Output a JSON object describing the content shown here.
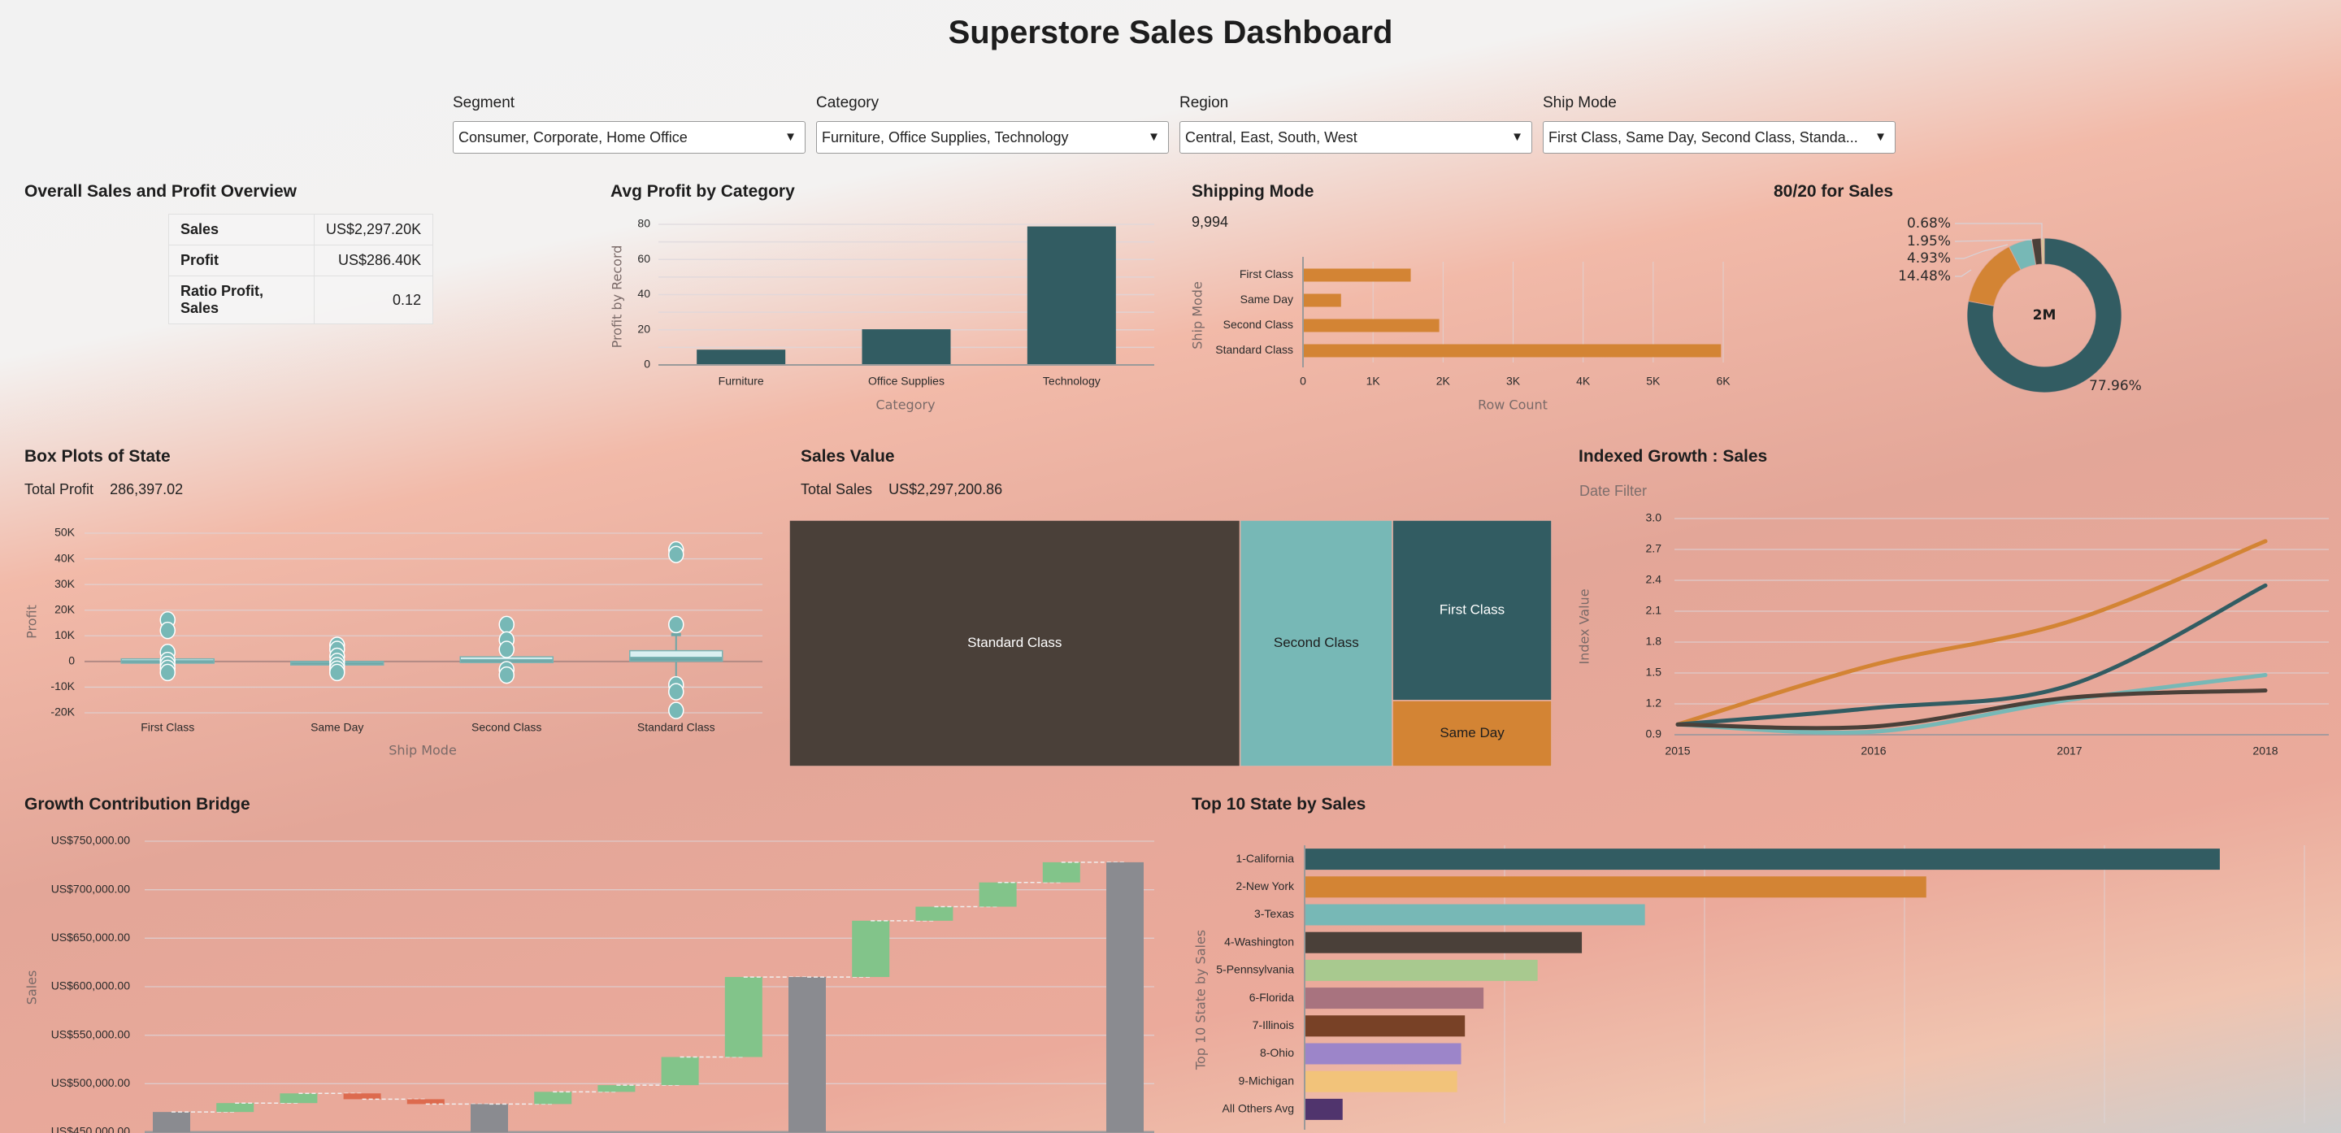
{
  "header": {
    "title": "Superstore Sales Dashboard"
  },
  "filters": [
    {
      "label": "Segment",
      "value": "Consumer, Corporate, Home Office"
    },
    {
      "label": "Category",
      "value": "Furniture, Office Supplies, Technology"
    },
    {
      "label": "Region",
      "value": "Central, East, South, West"
    },
    {
      "label": "Ship Mode",
      "value": "First Class, Same Day, Second Class, Standa..."
    }
  ],
  "overview": {
    "title": "Overall Sales and Profit Overview",
    "rows": [
      {
        "label": "Sales",
        "value": "US$2,297.20K"
      },
      {
        "label": "Profit",
        "value": "US$286.40K"
      },
      {
        "label": "Ratio Profit, Sales",
        "value": "0.12"
      }
    ]
  },
  "box_plots": {
    "title": "Box Plots of State",
    "kpi_label": "Total Profit",
    "kpi_value": "286,397.02"
  },
  "sales_value": {
    "title": "Sales Value",
    "kpi_label": "Total Sales",
    "kpi_value": "US$2,297,200.86"
  },
  "shipping_mode": {
    "title": "Shipping Mode",
    "kpi_value": "9,994"
  },
  "indexed_growth": {
    "title": "Indexed Growth : Sales",
    "subtitle": "Date Filter"
  },
  "colors": {
    "dark_teal": "#325c62",
    "orange": "#d38434",
    "light_teal": "#77b8b6",
    "dark_brown": "#4a4039",
    "tan": "#d8c59a",
    "green": "#82c48a",
    "red": "#dd6a4e",
    "gray": "#8a8b90"
  },
  "chart_data": [
    {
      "id": "avg_profit",
      "type": "bar",
      "title": "Avg Profit by Category",
      "categories": [
        "Furniture",
        "Office Supplies",
        "Technology"
      ],
      "values": [
        8.7,
        20.3,
        78.8
      ],
      "xlabel": "Category",
      "ylabel": "Profit by Record",
      "ylim": [
        0,
        80
      ],
      "yticks": [
        "0",
        "20",
        "40",
        "60",
        "80"
      ],
      "grid": true
    },
    {
      "id": "shipping_mode",
      "type": "bar",
      "orientation": "horizontal",
      "title": "Shipping Mode",
      "categories": [
        "First Class",
        "Same Day",
        "Second Class",
        "Standard Class"
      ],
      "values": [
        1538,
        543,
        1945,
        5968
      ],
      "xlabel": "Row Count",
      "ylabel": "Ship Mode",
      "xlim": [
        0,
        6000
      ],
      "xticks": [
        "0",
        "1K",
        "2K",
        "3K",
        "4K",
        "5K",
        "6K"
      ],
      "grid": true
    },
    {
      "id": "pareto_donut",
      "type": "pie",
      "title": "80/20 for Sales",
      "center_label": "2M",
      "slices": [
        {
          "label": "77.96%",
          "value": 77.96,
          "color": "#325c62"
        },
        {
          "label": "14.48%",
          "value": 14.48,
          "color": "#d38434"
        },
        {
          "label": "4.93%",
          "value": 4.93,
          "color": "#77b8b6"
        },
        {
          "label": "1.95%",
          "value": 1.95,
          "color": "#4a4039"
        },
        {
          "label": "0.68%",
          "value": 0.68,
          "color": "#d8c59a"
        }
      ]
    },
    {
      "id": "box_plots",
      "type": "scatter",
      "subtype": "boxplot",
      "title": "Box Plots of State",
      "xlabel": "Ship Mode",
      "ylabel": "Profit",
      "ylim": [
        -20000,
        50000
      ],
      "yticks": [
        "-20K",
        "-10K",
        "0",
        "10K",
        "20K",
        "30K",
        "40K",
        "50K"
      ],
      "categories": [
        "First Class",
        "Same Day",
        "Second Class",
        "Standard Class"
      ],
      "boxes": [
        {
          "q1": -400,
          "median": 300,
          "q3": 1000,
          "whisker_low": -400,
          "whisker_high": 1000,
          "points": [
            16200,
            12100,
            3500,
            400,
            -1200,
            -2700,
            -4300
          ]
        },
        {
          "q1": -1000,
          "median": -400,
          "q3": 0,
          "whisker_low": -1000,
          "whisker_high": 0,
          "points": [
            6300,
            4700,
            2000,
            0,
            -1600,
            -3000,
            -4300
          ]
        },
        {
          "q1": -400,
          "median": 700,
          "q3": 1800,
          "whisker_low": -400,
          "whisker_high": 1800,
          "points": [
            14400,
            8400,
            4700,
            -3200,
            -5300
          ]
        },
        {
          "q1": 100,
          "median": 1600,
          "q3": 4200,
          "whisker_low": -6300,
          "whisker_high": 10500,
          "points": [
            43500,
            41700,
            14400,
            -9100,
            -11800,
            -19100
          ]
        }
      ]
    },
    {
      "id": "sales_treemap",
      "type": "heatmap",
      "subtype": "treemap",
      "title": "Sales Value",
      "items": [
        {
          "label": "Standard Class",
          "value": 1358216,
          "color": "#4a4039",
          "text_color": "#ffffff"
        },
        {
          "label": "Second Class",
          "value": 459194,
          "color": "#77b8b6",
          "text_color": "#1d1d1d"
        },
        {
          "label": "First Class",
          "value": 351428,
          "color": "#325c62",
          "text_color": "#ffffff"
        },
        {
          "label": "Same Day",
          "value": 128363,
          "color": "#d38434",
          "text_color": "#1d1d1d"
        }
      ]
    },
    {
      "id": "indexed_growth",
      "type": "line",
      "title": "Indexed Growth : Sales",
      "ylabel": "Index Value",
      "x": [
        "2015",
        "2016",
        "2017",
        "2018"
      ],
      "ylim": [
        0.9,
        3.0
      ],
      "yticks": [
        "0.9",
        "1.2",
        "1.5",
        "1.8",
        "2.1",
        "2.4",
        "2.7",
        "3.0"
      ],
      "series": [
        {
          "name": "orange",
          "color": "#d38434",
          "values": [
            1.0,
            1.58,
            2.0,
            2.78
          ]
        },
        {
          "name": "dark-teal",
          "color": "#325c62",
          "values": [
            1.0,
            1.16,
            1.38,
            2.35
          ]
        },
        {
          "name": "light-teal",
          "color": "#77b8b6",
          "values": [
            1.0,
            0.93,
            1.24,
            1.48
          ]
        },
        {
          "name": "dark-brown",
          "color": "#4a4039",
          "values": [
            1.0,
            0.98,
            1.26,
            1.33
          ]
        }
      ]
    },
    {
      "id": "growth_bridge",
      "type": "bar",
      "subtype": "waterfall",
      "title": "Growth Contribution Bridge",
      "ylabel": "Sales",
      "ylim": [
        450000,
        750000
      ],
      "yticks": [
        "US$450,000.00",
        "US$500,000.00",
        "US$550,000.00",
        "US$600,000.00",
        "US$650,000.00",
        "US$700,000.00",
        "US$750,000.00"
      ],
      "steps": [
        {
          "kind": "total",
          "start": 450000,
          "end": 470800
        },
        {
          "kind": "increase",
          "start": 470800,
          "end": 480000
        },
        {
          "kind": "increase",
          "start": 480000,
          "end": 490000
        },
        {
          "kind": "decrease",
          "start": 490000,
          "end": 484000
        },
        {
          "kind": "decrease",
          "start": 484000,
          "end": 479000
        },
        {
          "kind": "total",
          "start": 450000,
          "end": 479000
        },
        {
          "kind": "increase",
          "start": 479000,
          "end": 491600
        },
        {
          "kind": "increase",
          "start": 491600,
          "end": 498500
        },
        {
          "kind": "increase",
          "start": 498500,
          "end": 527500
        },
        {
          "kind": "increase",
          "start": 527500,
          "end": 610000
        },
        {
          "kind": "total",
          "start": 450000,
          "end": 610000
        },
        {
          "kind": "increase",
          "start": 610000,
          "end": 668000
        },
        {
          "kind": "increase",
          "start": 668000,
          "end": 682500
        },
        {
          "kind": "increase",
          "start": 682500,
          "end": 707500
        },
        {
          "kind": "increase",
          "start": 707500,
          "end": 728300
        },
        {
          "kind": "total",
          "start": 450000,
          "end": 728300
        }
      ]
    },
    {
      "id": "top10_states",
      "type": "bar",
      "orientation": "horizontal",
      "title": "Top 10 State by Sales",
      "ylabel": "Top 10 State by Sales",
      "xlim": [
        0,
        500000
      ],
      "categories": [
        "1-California",
        "2-New York",
        "3-Texas",
        "4-Washington",
        "5-Pennsylvania",
        "6-Florida",
        "7-Illinois",
        "8-Ohio",
        "9-Michigan",
        "All Others Avg"
      ],
      "values": [
        457688,
        310876,
        170188,
        138641,
        116512,
        89474,
        80166,
        78258,
        76270,
        19000
      ],
      "colors": [
        "#325c62",
        "#d38434",
        "#77b8b6",
        "#4a4039",
        "#a8c98f",
        "#a8737f",
        "#784126",
        "#9c85c9",
        "#f2c37a",
        "#50346d"
      ]
    }
  ]
}
